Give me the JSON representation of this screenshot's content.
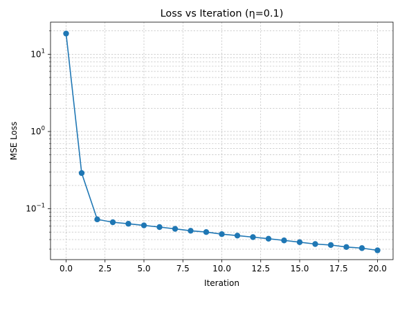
{
  "chart_data": {
    "type": "line",
    "title": "Loss vs Iteration (η=0.1)",
    "xlabel": "Iteration",
    "ylabel": "MSE Loss",
    "xlim": [
      -1.0,
      21.0
    ],
    "ylim": [
      0.022,
      26
    ],
    "yscale": "log",
    "grid": true,
    "legend": "none",
    "xticks": [
      0.0,
      2.5,
      5.0,
      7.5,
      10.0,
      12.5,
      15.0,
      17.5,
      20.0
    ],
    "xtick_labels": [
      "0.0",
      "2.5",
      "5.0",
      "7.5",
      "10.0",
      "12.5",
      "15.0",
      "17.5",
      "20.0"
    ],
    "yticks": [
      {
        "value": 0.1,
        "base": "10",
        "exp": "−1"
      },
      {
        "value": 1,
        "base": "10",
        "exp": "0"
      },
      {
        "value": 10,
        "base": "10",
        "exp": "1"
      }
    ],
    "series": [
      {
        "color": "#1f77b4",
        "marker": "circle",
        "x": [
          0,
          1,
          2,
          3,
          4,
          5,
          6,
          7,
          8,
          9,
          10,
          11,
          12,
          13,
          14,
          15,
          16,
          17,
          18,
          19,
          20
        ],
        "y": [
          18.5,
          0.29,
          0.073,
          0.067,
          0.064,
          0.061,
          0.058,
          0.055,
          0.052,
          0.05,
          0.047,
          0.045,
          0.043,
          0.041,
          0.039,
          0.037,
          0.035,
          0.034,
          0.032,
          0.031,
          0.029
        ]
      }
    ]
  }
}
